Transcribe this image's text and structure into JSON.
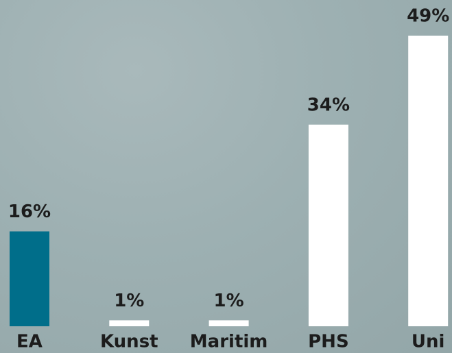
{
  "chart_data": {
    "type": "bar",
    "categories": [
      "EA",
      "Kunst",
      "Maritim",
      "PHS",
      "Uni"
    ],
    "values": [
      16,
      1,
      1,
      34,
      49
    ],
    "value_labels": [
      "16%",
      "1%",
      "1%",
      "34%",
      "49%"
    ],
    "colors": [
      "#006e8a",
      "#ffffff",
      "#ffffff",
      "#ffffff",
      "#ffffff"
    ]
  }
}
